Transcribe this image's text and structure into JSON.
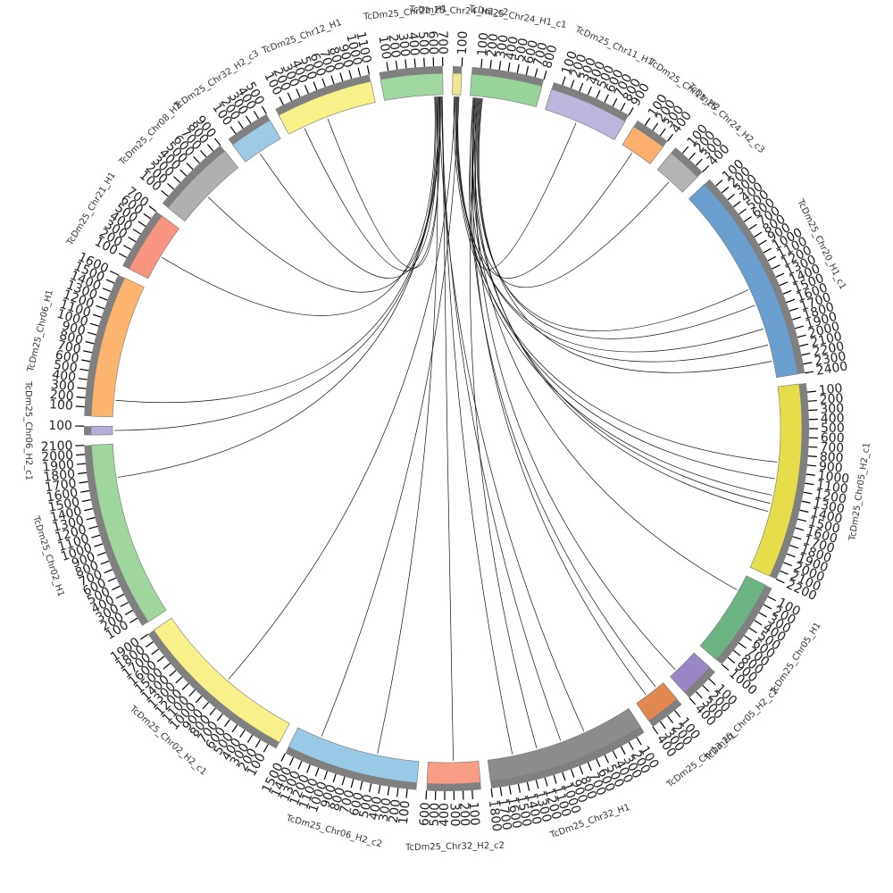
{
  "chart_data": {
    "type": "circos",
    "link_color": "#111111",
    "segments": [
      {
        "name": "TcDm25_Chr24_H2_c2",
        "color": "#f0e68c",
        "ticks": [
          100
        ]
      },
      {
        "name": "TcDm25_Chr24_H1_c1",
        "color": "#98d49a",
        "ticks": [
          100,
          200,
          300,
          400,
          500,
          600,
          700,
          800
        ]
      },
      {
        "name": "TcDm25_Chr11_H1",
        "color": "#bcb6dc",
        "ticks": [
          100,
          200,
          300,
          400,
          500,
          600,
          700,
          800,
          900
        ]
      },
      {
        "name": "TcDm25_Chr11_H2",
        "color": "#fdb06e",
        "ticks": [
          100,
          200,
          300,
          400
        ]
      },
      {
        "name": "TcDm25_Chr24_H2_c3",
        "color": "#b3b3b3",
        "ticks": [
          100,
          200,
          300,
          400
        ]
      },
      {
        "name": "TcDm25_Chr20_H1_c1",
        "color": "#6a9ecf",
        "ticks": [
          100,
          200,
          300,
          400,
          500,
          600,
          700,
          800,
          900,
          1000,
          1100,
          1200,
          1300,
          1400,
          1500,
          1600,
          1700,
          1800,
          1900,
          2000,
          2100,
          2200,
          2300,
          2400
        ]
      },
      {
        "name": "TcDm25_Chr05_H2_c1",
        "color": "#e6dd4a",
        "ticks": [
          100,
          200,
          300,
          400,
          500,
          600,
          700,
          800,
          900,
          1000,
          1100,
          1200,
          1300,
          1400,
          1500,
          1600,
          1700,
          1800,
          1900,
          2000,
          2100,
          2200
        ]
      },
      {
        "name": "TcDm25_Chr05_H1",
        "color": "#6bb382",
        "ticks": [
          100,
          200,
          300,
          400,
          500,
          600,
          700,
          800,
          900,
          1000
        ]
      },
      {
        "name": "TcDm25_Chr05_H2_c2",
        "color": "#9986c4",
        "ticks": [
          100,
          200,
          300,
          400
        ]
      },
      {
        "name": "TcDm25_Chr13_H1",
        "color": "#e08850",
        "ticks": [
          100,
          200,
          300,
          400
        ]
      },
      {
        "name": "TcDm25_Chr32_H1",
        "color": "#8c8c8c",
        "ticks": [
          100,
          200,
          300,
          400,
          500,
          600,
          700,
          800,
          900,
          1000,
          1100,
          1200,
          1300,
          1400,
          1500,
          1600,
          1700,
          1800
        ]
      },
      {
        "name": "TcDm25_Chr32_H2_c2",
        "color": "#f99c86",
        "ticks": [
          100,
          200,
          300,
          400,
          500,
          600
        ]
      },
      {
        "name": "TcDm25_Chr06_H2_c2",
        "color": "#98c9e6",
        "ticks": [
          100,
          200,
          300,
          400,
          500,
          600,
          700,
          800,
          900,
          1000,
          1100,
          1200,
          1300,
          1400,
          1500
        ]
      },
      {
        "name": "TcDm25_Chr02_H2_c1",
        "color": "#f8f08a",
        "ticks": [
          100,
          200,
          300,
          400,
          500,
          600,
          700,
          800,
          900,
          1000,
          1100,
          1200,
          1300,
          1400,
          1500,
          1600,
          1700,
          1800,
          1900
        ]
      },
      {
        "name": "TcDm25_Chr02_H1",
        "color": "#a0d69e",
        "ticks": [
          100,
          200,
          300,
          400,
          500,
          600,
          700,
          800,
          900,
          1000,
          1100,
          1200,
          1300,
          1400,
          1500,
          1600,
          1700,
          1800,
          1900,
          2000,
          2100
        ]
      },
      {
        "name": "TcDm25_Chr06_H2_c1",
        "color": "#b4aed8",
        "ticks": [
          100
        ]
      },
      {
        "name": "TcDm25_Chr06_H1",
        "color": "#fdb46e",
        "ticks": [
          100,
          200,
          300,
          400,
          500,
          600,
          700,
          800,
          900,
          1000,
          1100,
          1200,
          1300,
          1400,
          1500,
          1600
        ]
      },
      {
        "name": "TcDm25_Chr21_H1",
        "color": "#f99480",
        "ticks": [
          100,
          200,
          300,
          400,
          500,
          600,
          700
        ]
      },
      {
        "name": "TcDm25_Chr08_H2",
        "color": "#b0b0b0",
        "ticks": [
          100,
          200,
          300,
          400,
          500,
          600,
          700,
          800,
          900
        ]
      },
      {
        "name": "TcDm25_Chr32_H2_c3",
        "color": "#9ecae6",
        "ticks": [
          100,
          200,
          300,
          400,
          500
        ]
      },
      {
        "name": "TcDm25_Chr12_H1",
        "color": "#f8f088",
        "ticks": [
          100,
          200,
          300,
          400,
          500,
          600,
          700,
          800,
          900,
          1000,
          1100
        ]
      },
      {
        "name": "TcDm25_Chr22_H1",
        "color": "#a0d6a0",
        "ticks": [
          100,
          200,
          300,
          400,
          500,
          600,
          700
        ]
      }
    ],
    "links": [
      {
        "from": [
          0,
          50
        ],
        "to": [
          5,
          1800
        ]
      },
      {
        "from": [
          0,
          60
        ],
        "to": [
          5,
          2000
        ]
      },
      {
        "from": [
          0,
          40
        ],
        "to": [
          6,
          900
        ]
      },
      {
        "from": [
          0,
          70
        ],
        "to": [
          6,
          1100
        ]
      },
      {
        "from": [
          21,
          650
        ],
        "to": [
          10,
          600
        ]
      },
      {
        "from": [
          21,
          680
        ],
        "to": [
          10,
          900
        ]
      },
      {
        "from": [
          1,
          100
        ],
        "to": [
          10,
          1200
        ]
      },
      {
        "from": [
          1,
          80
        ],
        "to": [
          9,
          250
        ]
      },
      {
        "from": [
          1,
          120
        ],
        "to": [
          8,
          300
        ]
      },
      {
        "from": [
          1,
          60
        ],
        "to": [
          6,
          1400
        ]
      },
      {
        "from": [
          1,
          90
        ],
        "to": [
          6,
          1500
        ]
      },
      {
        "from": [
          21,
          690
        ],
        "to": [
          11,
          300
        ]
      },
      {
        "from": [
          21,
          620
        ],
        "to": [
          12,
          500
        ]
      },
      {
        "from": [
          21,
          640
        ],
        "to": [
          14,
          1700
        ]
      },
      {
        "from": [
          21,
          660
        ],
        "to": [
          16,
          200
        ]
      },
      {
        "from": [
          21,
          670
        ],
        "to": [
          15,
          50
        ]
      },
      {
        "from": [
          21,
          600
        ],
        "to": [
          17,
          300
        ]
      },
      {
        "from": [
          21,
          610
        ],
        "to": [
          18,
          400
        ]
      },
      {
        "from": [
          21,
          630
        ],
        "to": [
          19,
          200
        ]
      },
      {
        "from": [
          21,
          650
        ],
        "to": [
          20,
          500
        ]
      },
      {
        "from": [
          21,
          660
        ],
        "to": [
          20,
          200
        ]
      },
      {
        "from": [
          1,
          50
        ],
        "to": [
          2,
          400
        ]
      },
      {
        "from": [
          1,
          70
        ],
        "to": [
          3,
          150
        ]
      },
      {
        "from": [
          1,
          110
        ],
        "to": [
          4,
          200
        ]
      },
      {
        "from": [
          1,
          130
        ],
        "to": [
          5,
          1300
        ]
      },
      {
        "from": [
          1,
          140
        ],
        "to": [
          5,
          1500
        ]
      },
      {
        "from": [
          1,
          150
        ],
        "to": [
          5,
          2200
        ]
      },
      {
        "from": [
          0,
          30
        ],
        "to": [
          13,
          900
        ]
      },
      {
        "from": [
          0,
          80
        ],
        "to": [
          12,
          1200
        ]
      },
      {
        "from": [
          21,
          690
        ],
        "to": [
          10,
          1500
        ]
      },
      {
        "from": [
          1,
          40
        ],
        "to": [
          9,
          100
        ]
      },
      {
        "from": [
          1,
          60
        ],
        "to": [
          7,
          200
        ]
      },
      {
        "from": [
          0,
          20
        ],
        "to": [
          6,
          1300
        ]
      }
    ]
  }
}
